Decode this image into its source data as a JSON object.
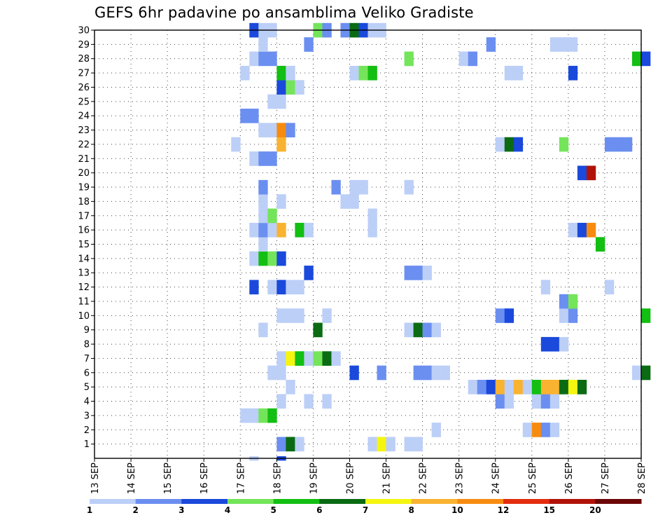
{
  "chart_data": {
    "type": "heatmap",
    "title": "GEFS 6hr padavine po ansamblima Veliko Gradiste",
    "xlabel": "",
    "ylabel": "",
    "x_ticks": [
      "13 SEP",
      "14 SEP",
      "15 SEP",
      "16 SEP",
      "17 SEP",
      "18 SEP",
      "19 SEP",
      "20 SEP",
      "21 SEP",
      "22 SEP",
      "23 SEP",
      "24 SEP",
      "25 SEP",
      "26 SEP",
      "27 SEP",
      "28 SEP"
    ],
    "y_ticks": [
      "1",
      "2",
      "3",
      "4",
      "5",
      "6",
      "7",
      "8",
      "9",
      "10",
      "11",
      "12",
      "13",
      "14",
      "15",
      "16",
      "17",
      "18",
      "19",
      "20",
      "21",
      "22",
      "23",
      "24",
      "25",
      "26",
      "27",
      "28",
      "29",
      "30"
    ],
    "x_range_days": [
      13,
      28
    ],
    "y_range": [
      0,
      30
    ],
    "grid": "dotted",
    "step_hours": 6,
    "legend_position": "bottom",
    "levels": [
      1,
      2,
      3,
      4,
      5,
      6,
      7,
      8,
      10,
      12,
      15,
      20
    ],
    "colors": [
      "#bccff7",
      "#6b8ff0",
      "#1a49db",
      "#74e55a",
      "#12bf12",
      "#0b6b13",
      "#f5f510",
      "#f9b331",
      "#f78b10",
      "#e32d0f",
      "#b01208",
      "#6b0606"
    ],
    "cells": [
      {
        "member": 1,
        "day": 18.0,
        "bin": 2
      },
      {
        "member": 1,
        "day": 18.25,
        "bin": 6
      },
      {
        "member": 1,
        "day": 18.5,
        "bin": 1
      },
      {
        "member": 1,
        "day": 20.5,
        "bin": 1
      },
      {
        "member": 1,
        "day": 20.75,
        "bin": 7
      },
      {
        "member": 1,
        "day": 21.0,
        "bin": 1
      },
      {
        "member": 1,
        "day": 21.5,
        "bin": 1
      },
      {
        "member": 1,
        "day": 21.75,
        "bin": 1
      },
      {
        "member": 2,
        "day": 22.25,
        "bin": 1
      },
      {
        "member": 2,
        "day": 24.75,
        "bin": 1
      },
      {
        "member": 2,
        "day": 25.0,
        "bin": 9
      },
      {
        "member": 2,
        "day": 25.25,
        "bin": 2
      },
      {
        "member": 2,
        "day": 25.5,
        "bin": 1
      },
      {
        "member": 3,
        "day": 17.0,
        "bin": 1
      },
      {
        "member": 3,
        "day": 17.25,
        "bin": 1
      },
      {
        "member": 3,
        "day": 17.5,
        "bin": 4
      },
      {
        "member": 3,
        "day": 17.75,
        "bin": 5
      },
      {
        "member": 4,
        "day": 18.0,
        "bin": 1
      },
      {
        "member": 4,
        "day": 18.75,
        "bin": 1
      },
      {
        "member": 4,
        "day": 19.25,
        "bin": 1
      },
      {
        "member": 4,
        "day": 24.0,
        "bin": 2
      },
      {
        "member": 4,
        "day": 24.25,
        "bin": 1
      },
      {
        "member": 4,
        "day": 25.0,
        "bin": 1
      },
      {
        "member": 4,
        "day": 25.25,
        "bin": 2
      },
      {
        "member": 4,
        "day": 25.5,
        "bin": 1
      },
      {
        "member": 5,
        "day": 18.25,
        "bin": 1
      },
      {
        "member": 5,
        "day": 23.25,
        "bin": 1
      },
      {
        "member": 5,
        "day": 23.5,
        "bin": 2
      },
      {
        "member": 5,
        "day": 23.75,
        "bin": 3
      },
      {
        "member": 5,
        "day": 24.0,
        "bin": 8
      },
      {
        "member": 5,
        "day": 24.25,
        "bin": 1
      },
      {
        "member": 5,
        "day": 24.5,
        "bin": 8
      },
      {
        "member": 5,
        "day": 24.75,
        "bin": 1
      },
      {
        "member": 5,
        "day": 25.0,
        "bin": 5
      },
      {
        "member": 5,
        "day": 25.25,
        "bin": 8
      },
      {
        "member": 5,
        "day": 25.5,
        "bin": 8
      },
      {
        "member": 5,
        "day": 25.75,
        "bin": 6
      },
      {
        "member": 5,
        "day": 26.0,
        "bin": 7
      },
      {
        "member": 5,
        "day": 26.25,
        "bin": 6
      },
      {
        "member": 6,
        "day": 17.75,
        "bin": 1
      },
      {
        "member": 6,
        "day": 18.0,
        "bin": 1
      },
      {
        "member": 6,
        "day": 20.0,
        "bin": 3
      },
      {
        "member": 6,
        "day": 20.75,
        "bin": 2
      },
      {
        "member": 6,
        "day": 21.75,
        "bin": 2
      },
      {
        "member": 6,
        "day": 22.0,
        "bin": 2
      },
      {
        "member": 6,
        "day": 22.25,
        "bin": 1
      },
      {
        "member": 6,
        "day": 22.5,
        "bin": 1
      },
      {
        "member": 6,
        "day": 27.75,
        "bin": 1
      },
      {
        "member": 6,
        "day": 28.0,
        "bin": 6
      },
      {
        "member": 7,
        "day": 18.0,
        "bin": 1
      },
      {
        "member": 7,
        "day": 18.25,
        "bin": 7
      },
      {
        "member": 7,
        "day": 18.5,
        "bin": 5
      },
      {
        "member": 7,
        "day": 18.75,
        "bin": 1
      },
      {
        "member": 7,
        "day": 19.0,
        "bin": 4
      },
      {
        "member": 7,
        "day": 19.25,
        "bin": 6
      },
      {
        "member": 7,
        "day": 19.5,
        "bin": 1
      },
      {
        "member": 8,
        "day": 25.25,
        "bin": 3
      },
      {
        "member": 8,
        "day": 25.5,
        "bin": 3
      },
      {
        "member": 8,
        "day": 25.75,
        "bin": 1
      },
      {
        "member": 9,
        "day": 17.5,
        "bin": 1
      },
      {
        "member": 9,
        "day": 19.0,
        "bin": 6
      },
      {
        "member": 9,
        "day": 21.5,
        "bin": 1
      },
      {
        "member": 9,
        "day": 21.75,
        "bin": 6
      },
      {
        "member": 9,
        "day": 22.0,
        "bin": 2
      },
      {
        "member": 9,
        "day": 22.25,
        "bin": 1
      },
      {
        "member": 10,
        "day": 18.0,
        "bin": 1
      },
      {
        "member": 10,
        "day": 18.25,
        "bin": 1
      },
      {
        "member": 10,
        "day": 18.5,
        "bin": 1
      },
      {
        "member": 10,
        "day": 19.25,
        "bin": 1
      },
      {
        "member": 10,
        "day": 24.0,
        "bin": 2
      },
      {
        "member": 10,
        "day": 24.25,
        "bin": 3
      },
      {
        "member": 10,
        "day": 25.75,
        "bin": 1
      },
      {
        "member": 10,
        "day": 26.0,
        "bin": 2
      },
      {
        "member": 10,
        "day": 28.0,
        "bin": 5
      },
      {
        "member": 11,
        "day": 25.75,
        "bin": 2
      },
      {
        "member": 11,
        "day": 26.0,
        "bin": 4
      },
      {
        "member": 12,
        "day": 17.25,
        "bin": 3
      },
      {
        "member": 12,
        "day": 17.75,
        "bin": 1
      },
      {
        "member": 12,
        "day": 18.0,
        "bin": 3
      },
      {
        "member": 12,
        "day": 18.25,
        "bin": 1
      },
      {
        "member": 12,
        "day": 18.5,
        "bin": 1
      },
      {
        "member": 12,
        "day": 25.25,
        "bin": 1
      },
      {
        "member": 12,
        "day": 27.0,
        "bin": 1
      },
      {
        "member": 13,
        "day": 18.75,
        "bin": 3
      },
      {
        "member": 13,
        "day": 21.5,
        "bin": 2
      },
      {
        "member": 13,
        "day": 21.75,
        "bin": 2
      },
      {
        "member": 13,
        "day": 22.0,
        "bin": 1
      },
      {
        "member": 14,
        "day": 17.25,
        "bin": 1
      },
      {
        "member": 14,
        "day": 17.5,
        "bin": 5
      },
      {
        "member": 14,
        "day": 17.75,
        "bin": 4
      },
      {
        "member": 14,
        "day": 18.0,
        "bin": 3
      },
      {
        "member": 15,
        "day": 17.5,
        "bin": 1
      },
      {
        "member": 15,
        "day": 26.75,
        "bin": 5
      },
      {
        "member": 16,
        "day": 17.25,
        "bin": 1
      },
      {
        "member": 16,
        "day": 17.5,
        "bin": 2
      },
      {
        "member": 16,
        "day": 17.75,
        "bin": 1
      },
      {
        "member": 16,
        "day": 18.0,
        "bin": 8
      },
      {
        "member": 16,
        "day": 18.5,
        "bin": 5
      },
      {
        "member": 16,
        "day": 18.75,
        "bin": 1
      },
      {
        "member": 16,
        "day": 20.5,
        "bin": 1
      },
      {
        "member": 16,
        "day": 26.0,
        "bin": 1
      },
      {
        "member": 16,
        "day": 26.25,
        "bin": 3
      },
      {
        "member": 16,
        "day": 26.5,
        "bin": 9
      },
      {
        "member": 17,
        "day": 17.5,
        "bin": 1
      },
      {
        "member": 17,
        "day": 17.75,
        "bin": 4
      },
      {
        "member": 17,
        "day": 20.5,
        "bin": 1
      },
      {
        "member": 18,
        "day": 17.5,
        "bin": 1
      },
      {
        "member": 18,
        "day": 18.0,
        "bin": 1
      },
      {
        "member": 18,
        "day": 19.75,
        "bin": 1
      },
      {
        "member": 18,
        "day": 20.0,
        "bin": 1
      },
      {
        "member": 19,
        "day": 17.5,
        "bin": 2
      },
      {
        "member": 19,
        "day": 19.5,
        "bin": 2
      },
      {
        "member": 19,
        "day": 20.0,
        "bin": 1
      },
      {
        "member": 19,
        "day": 20.25,
        "bin": 1
      },
      {
        "member": 19,
        "day": 21.5,
        "bin": 1
      },
      {
        "member": 20,
        "day": 26.25,
        "bin": 3
      },
      {
        "member": 20,
        "day": 26.5,
        "bin": 11
      },
      {
        "member": 21,
        "day": 17.25,
        "bin": 1
      },
      {
        "member": 21,
        "day": 17.5,
        "bin": 2
      },
      {
        "member": 21,
        "day": 17.75,
        "bin": 2
      },
      {
        "member": 22,
        "day": 16.75,
        "bin": 1
      },
      {
        "member": 22,
        "day": 18.0,
        "bin": 8
      },
      {
        "member": 22,
        "day": 24.0,
        "bin": 1
      },
      {
        "member": 22,
        "day": 24.25,
        "bin": 6
      },
      {
        "member": 22,
        "day": 24.5,
        "bin": 3
      },
      {
        "member": 22,
        "day": 25.75,
        "bin": 4
      },
      {
        "member": 22,
        "day": 27.0,
        "bin": 2
      },
      {
        "member": 22,
        "day": 27.25,
        "bin": 2
      },
      {
        "member": 22,
        "day": 27.5,
        "bin": 2
      },
      {
        "member": 23,
        "day": 17.5,
        "bin": 1
      },
      {
        "member": 23,
        "day": 17.75,
        "bin": 1
      },
      {
        "member": 23,
        "day": 18.0,
        "bin": 9
      },
      {
        "member": 23,
        "day": 18.25,
        "bin": 2
      },
      {
        "member": 24,
        "day": 17.0,
        "bin": 2
      },
      {
        "member": 24,
        "day": 17.25,
        "bin": 2
      },
      {
        "member": 25,
        "day": 17.75,
        "bin": 1
      },
      {
        "member": 25,
        "day": 18.0,
        "bin": 1
      },
      {
        "member": 26,
        "day": 18.0,
        "bin": 3
      },
      {
        "member": 26,
        "day": 18.25,
        "bin": 4
      },
      {
        "member": 26,
        "day": 18.5,
        "bin": 1
      },
      {
        "member": 27,
        "day": 17.0,
        "bin": 1
      },
      {
        "member": 27,
        "day": 18.0,
        "bin": 5
      },
      {
        "member": 27,
        "day": 18.25,
        "bin": 1
      },
      {
        "member": 27,
        "day": 20.0,
        "bin": 1
      },
      {
        "member": 27,
        "day": 20.25,
        "bin": 4
      },
      {
        "member": 27,
        "day": 20.5,
        "bin": 5
      },
      {
        "member": 27,
        "day": 24.25,
        "bin": 1
      },
      {
        "member": 27,
        "day": 24.5,
        "bin": 1
      },
      {
        "member": 27,
        "day": 26.0,
        "bin": 3
      },
      {
        "member": 28,
        "day": 17.25,
        "bin": 1
      },
      {
        "member": 28,
        "day": 17.5,
        "bin": 2
      },
      {
        "member": 28,
        "day": 17.75,
        "bin": 2
      },
      {
        "member": 28,
        "day": 21.5,
        "bin": 4
      },
      {
        "member": 28,
        "day": 23.0,
        "bin": 1
      },
      {
        "member": 28,
        "day": 23.25,
        "bin": 2
      },
      {
        "member": 28,
        "day": 27.75,
        "bin": 5
      },
      {
        "member": 28,
        "day": 28.0,
        "bin": 3
      },
      {
        "member": 29,
        "day": 17.5,
        "bin": 1
      },
      {
        "member": 29,
        "day": 18.75,
        "bin": 2
      },
      {
        "member": 29,
        "day": 23.75,
        "bin": 2
      },
      {
        "member": 29,
        "day": 25.5,
        "bin": 1
      },
      {
        "member": 29,
        "day": 25.75,
        "bin": 1
      },
      {
        "member": 29,
        "day": 26.0,
        "bin": 1
      },
      {
        "member": 30,
        "day": 17.25,
        "bin": 3
      },
      {
        "member": 30,
        "day": 17.5,
        "bin": 1
      },
      {
        "member": 30,
        "day": 17.75,
        "bin": 1
      },
      {
        "member": 30,
        "day": 19.0,
        "bin": 4
      },
      {
        "member": 30,
        "day": 19.25,
        "bin": 2
      },
      {
        "member": 30,
        "day": 19.75,
        "bin": 2
      },
      {
        "member": 30,
        "day": 20.0,
        "bin": 6
      },
      {
        "member": 30,
        "day": 20.25,
        "bin": 3
      },
      {
        "member": 30,
        "day": 20.5,
        "bin": 1
      },
      {
        "member": 30,
        "day": 20.75,
        "bin": 1
      },
      {
        "member": 0,
        "day": 17.25,
        "bin": 1
      },
      {
        "member": 0,
        "day": 18.0,
        "bin": 3
      }
    ]
  }
}
